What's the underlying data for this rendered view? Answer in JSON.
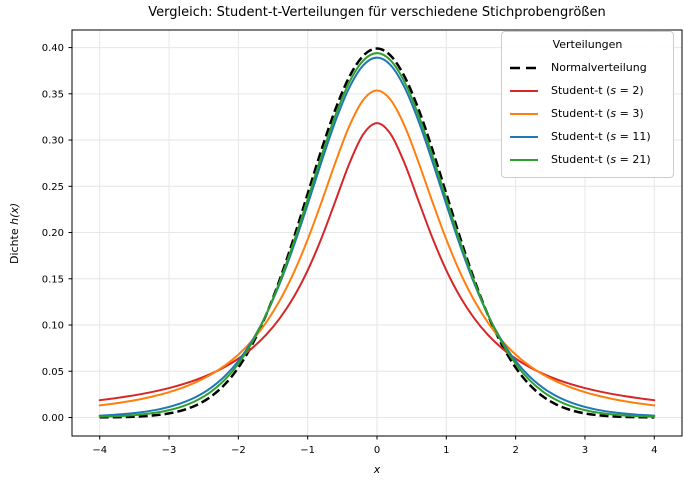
{
  "title": "Vergleich: Student-t-Verteilungen für verschiedene Stichprobengrößen",
  "chart_data": {
    "type": "line",
    "title": "Vergleich: Student-t-Verteilungen für verschiedene Stichprobengrößen",
    "xlabel": {
      "pre": "",
      "italic": "x",
      "post": ""
    },
    "ylabel": {
      "pre": "Dichte ",
      "italic": "h(x)",
      "post": ""
    },
    "xlim": [
      -4.4,
      4.4
    ],
    "ylim": [
      -0.02,
      0.419
    ],
    "xticks": [
      -4,
      -3,
      -2,
      -1,
      0,
      1,
      2,
      3,
      4
    ],
    "xtick_labels": [
      "−4",
      "−3",
      "−2",
      "−1",
      "0",
      "1",
      "2",
      "3",
      "4"
    ],
    "yticks": [
      0.0,
      0.05,
      0.1,
      0.15,
      0.2,
      0.25,
      0.3,
      0.35,
      0.4
    ],
    "ytick_labels": [
      "0.00",
      "0.05",
      "0.10",
      "0.15",
      "0.20",
      "0.25",
      "0.30",
      "0.35",
      "0.40"
    ],
    "grid": true,
    "grid_color": "#e6e6e6",
    "axis_color": "#000000",
    "legend": {
      "title": "Verteilungen",
      "position": "upper right"
    },
    "x": [
      -4,
      -3.8,
      -3.6,
      -3.4,
      -3.2,
      -3,
      -2.8,
      -2.6,
      -2.4,
      -2.2,
      -2,
      -1.8,
      -1.6,
      -1.4,
      -1.2,
      -1,
      -0.8,
      -0.6,
      -0.4,
      -0.2,
      0,
      0.2,
      0.4,
      0.6,
      0.8,
      1,
      1.2,
      1.4,
      1.6,
      1.8,
      2,
      2.2,
      2.4,
      2.6,
      2.8,
      3,
      3.2,
      3.4,
      3.6,
      3.8,
      4
    ],
    "series": [
      {
        "name": "Normalverteilung",
        "label_pre": "Normalverteilung",
        "label_var": "",
        "label_post": "",
        "color": "#000000",
        "linestyle": "dashed",
        "linewidth": 2.5,
        "peak": 0.3989,
        "values": [
          0.00013,
          0.00029,
          0.00061,
          0.00123,
          0.00238,
          0.00443,
          0.00792,
          0.01358,
          0.02239,
          0.03547,
          0.05399,
          0.07895,
          0.11092,
          0.14973,
          0.19419,
          0.24197,
          0.28969,
          0.33322,
          0.36827,
          0.39104,
          0.39894,
          0.39104,
          0.36827,
          0.33322,
          0.28969,
          0.24197,
          0.19419,
          0.14973,
          0.11092,
          0.07895,
          0.05399,
          0.03547,
          0.02239,
          0.01358,
          0.00792,
          0.00443,
          0.00238,
          0.00123,
          0.00061,
          0.00029,
          0.00013
        ]
      },
      {
        "name": "Student-t (s = 2)",
        "label_pre": "Student-t (",
        "label_var": "s",
        "label_post": " = 2)",
        "color": "#d62728",
        "linestyle": "solid",
        "linewidth": 2,
        "peak": 0.3183,
        "values": [
          0.01872,
          0.02062,
          0.0228,
          0.02534,
          0.02832,
          0.03183,
          0.03601,
          0.04102,
          0.04709,
          0.0545,
          0.06366,
          0.07508,
          0.08942,
          0.10754,
          0.13045,
          0.15915,
          0.19409,
          0.23405,
          0.27441,
          0.30607,
          0.31831,
          0.30607,
          0.27441,
          0.23405,
          0.19409,
          0.15915,
          0.13045,
          0.10754,
          0.08942,
          0.07508,
          0.06366,
          0.0545,
          0.04709,
          0.04102,
          0.03601,
          0.03183,
          0.02832,
          0.02534,
          0.0228,
          0.02062,
          0.01872
        ]
      },
      {
        "name": "Student-t (s = 3)",
        "label_pre": "Student-t (",
        "label_var": "s",
        "label_post": " = 3)",
        "color": "#ff7f0e",
        "linestyle": "solid",
        "linewidth": 2,
        "peak": 0.3536,
        "values": [
          0.0131,
          0.015,
          0.01728,
          0.02003,
          0.0234,
          0.02741,
          0.0324,
          0.03857,
          0.04626,
          0.0559,
          0.06804,
          0.08337,
          0.1027,
          0.12691,
          0.15674,
          0.19245,
          0.23312,
          0.27583,
          0.31497,
          0.34318,
          0.35355,
          0.34318,
          0.31497,
          0.27583,
          0.23312,
          0.19245,
          0.15674,
          0.12691,
          0.1027,
          0.08337,
          0.06804,
          0.0559,
          0.04626,
          0.03857,
          0.0324,
          0.02741,
          0.0234,
          0.02003,
          0.01728,
          0.015,
          0.0131
        ]
      },
      {
        "name": "Student-t (s = 11)",
        "label_pre": "Student-t (",
        "label_var": "s",
        "label_post": " = 11)",
        "color": "#1f77b4",
        "linestyle": "solid",
        "linewidth": 2,
        "peak": 0.3891,
        "values": [
          0.00203,
          0.00285,
          0.00402,
          0.00569,
          0.00806,
          0.01141,
          0.0161,
          0.0227,
          0.03187,
          0.04436,
          0.06116,
          0.08311,
          0.11108,
          0.1454,
          0.18566,
          0.23036,
          0.27663,
          0.32033,
          0.35658,
          0.38066,
          0.38911,
          0.38066,
          0.35658,
          0.32033,
          0.27663,
          0.23036,
          0.18566,
          0.1454,
          0.11108,
          0.08311,
          0.06116,
          0.04436,
          0.03187,
          0.0227,
          0.0161,
          0.01141,
          0.00806,
          0.00569,
          0.00402,
          0.00285,
          0.00203
        ]
      },
      {
        "name": "Student-t (s = 21)",
        "label_pre": "Student-t (",
        "label_var": "s",
        "label_post": " = 21)",
        "color": "#2ca02c",
        "linestyle": "solid",
        "linewidth": 2,
        "peak": 0.394,
        "values": [
          0.00082,
          0.00131,
          0.00208,
          0.00328,
          0.00513,
          0.00797,
          0.01223,
          0.01852,
          0.02763,
          0.0405,
          0.05809,
          0.08145,
          0.11123,
          0.14763,
          0.18985,
          0.23603,
          0.28303,
          0.32667,
          0.36235,
          0.38579,
          0.39397,
          0.38579,
          0.36235,
          0.32667,
          0.28303,
          0.23603,
          0.18985,
          0.14763,
          0.11123,
          0.08145,
          0.05809,
          0.0405,
          0.02763,
          0.01852,
          0.01223,
          0.00797,
          0.00513,
          0.00328,
          0.00208,
          0.00131,
          0.00082
        ]
      }
    ]
  }
}
